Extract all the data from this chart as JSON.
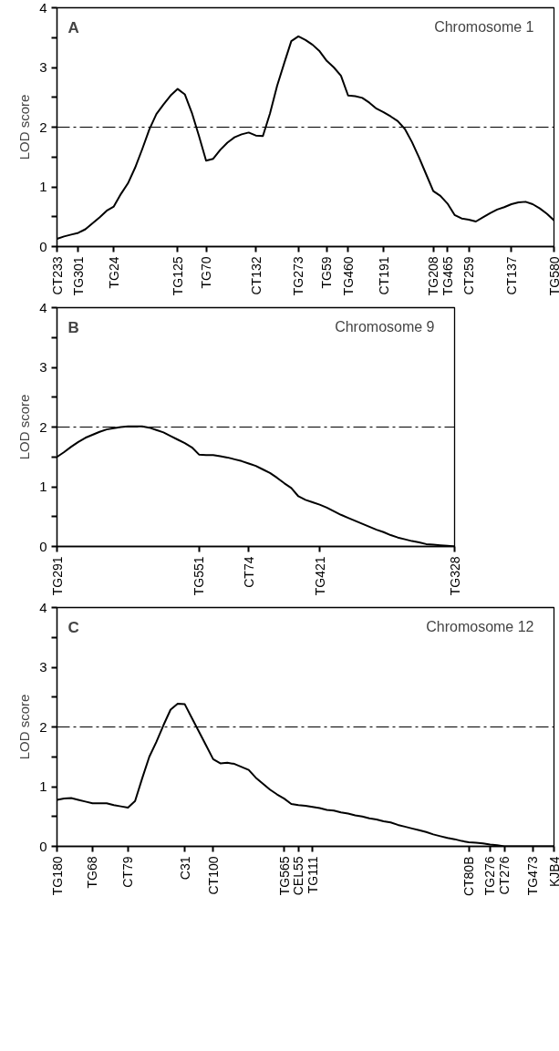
{
  "chart_data": [
    {
      "type": "line",
      "ylabel": "LOD score",
      "annotations": [
        "A",
        "Chromosome 1"
      ],
      "grid": false,
      "marker": "none",
      "line_style": "solid",
      "ylim": [
        0,
        4
      ],
      "categories": [
        "CT233",
        null,
        null,
        "TG301",
        null,
        null,
        null,
        null,
        "TG24",
        null,
        null,
        null,
        null,
        null,
        null,
        null,
        null,
        "TG125",
        null,
        null,
        null,
        "TG70",
        null,
        null,
        null,
        null,
        null,
        null,
        "CT132",
        null,
        null,
        null,
        null,
        null,
        "TG273",
        null,
        null,
        null,
        "TG59",
        null,
        null,
        "TG460",
        null,
        null,
        null,
        null,
        "CT191",
        null,
        null,
        null,
        null,
        null,
        null,
        "TG208",
        null,
        "TG465",
        null,
        null,
        "CT259",
        null,
        null,
        null,
        null,
        null,
        "CT137",
        null,
        null,
        null,
        null,
        null,
        "TG580"
      ],
      "yticks": [
        0,
        {
          "value": 0.5,
          "label": null
        },
        1,
        {
          "value": 1.5,
          "label": null
        },
        2,
        {
          "value": 2.5,
          "label": null
        },
        3,
        {
          "value": 3.5,
          "label": null
        },
        4
      ],
      "ref_lines": [
        {
          "axis": "y",
          "value": 2,
          "line_style": "dashed",
          "color": "#000000"
        }
      ],
      "series": [
        {
          "color": "#000000",
          "values": [
            0.13,
            0.17,
            0.2,
            0.23,
            0.29,
            0.39,
            0.49,
            0.6,
            0.67,
            0.88,
            1.06,
            1.32,
            1.63,
            1.96,
            2.22,
            2.38,
            2.53,
            2.64,
            2.55,
            2.24,
            1.85,
            1.44,
            1.47,
            1.62,
            1.74,
            1.83,
            1.88,
            1.91,
            1.86,
            1.85,
            2.23,
            2.69,
            3.07,
            3.44,
            3.52,
            3.46,
            3.38,
            3.27,
            3.11,
            3.0,
            2.86,
            2.53,
            2.52,
            2.49,
            2.41,
            2.31,
            2.25,
            2.18,
            2.1,
            1.97,
            1.75,
            1.49,
            1.21,
            0.93,
            0.85,
            0.72,
            0.53,
            0.47,
            0.45,
            0.42,
            0.49,
            0.56,
            0.62,
            0.66,
            0.71,
            0.74,
            0.75,
            0.71,
            0.64,
            0.55,
            0.44
          ]
        }
      ]
    },
    {
      "type": "line",
      "ylabel": "LOD score",
      "annotations": [
        "B",
        "Chromosome 9"
      ],
      "grid": false,
      "marker": "none",
      "line_style": "solid",
      "ylim": [
        0,
        4
      ],
      "categories": [
        "TG291",
        null,
        null,
        null,
        null,
        null,
        null,
        null,
        null,
        null,
        null,
        null,
        null,
        null,
        null,
        null,
        null,
        null,
        null,
        null,
        "TG551",
        null,
        null,
        null,
        null,
        null,
        null,
        "CT74",
        null,
        null,
        null,
        null,
        null,
        null,
        null,
        null,
        null,
        "TG421",
        null,
        null,
        null,
        null,
        null,
        null,
        null,
        null,
        null,
        null,
        null,
        null,
        null,
        null,
        null,
        null,
        null,
        null,
        "TG328"
      ],
      "yticks": [
        0,
        {
          "value": 0.5,
          "label": null
        },
        1,
        {
          "value": 1.5,
          "label": null
        },
        2,
        {
          "value": 2.5,
          "label": null
        },
        3,
        {
          "value": 3.5,
          "label": null
        },
        4
      ],
      "ref_lines": [
        {
          "axis": "y",
          "value": 2,
          "line_style": "dashed",
          "color": "#000000"
        }
      ],
      "series": [
        {
          "color": "#000000",
          "values": [
            1.5,
            1.58,
            1.67,
            1.75,
            1.82,
            1.87,
            1.92,
            1.96,
            1.98,
            2.0,
            2.01,
            2.01,
            2.01,
            1.99,
            1.95,
            1.91,
            1.85,
            1.79,
            1.73,
            1.66,
            1.54,
            1.53,
            1.53,
            1.51,
            1.49,
            1.46,
            1.43,
            1.39,
            1.35,
            1.29,
            1.23,
            1.15,
            1.06,
            0.98,
            0.84,
            0.78,
            0.74,
            0.7,
            0.65,
            0.59,
            0.53,
            0.48,
            0.43,
            0.38,
            0.33,
            0.28,
            0.24,
            0.19,
            0.15,
            0.12,
            0.09,
            0.07,
            0.04,
            0.03,
            0.02,
            0.01,
            0
          ]
        }
      ]
    },
    {
      "type": "line",
      "ylabel": "LOD score",
      "annotations": [
        "C",
        "Chromosome 12"
      ],
      "grid": false,
      "marker": "none",
      "line_style": "solid",
      "ylim": [
        0,
        4
      ],
      "categories": [
        "TG180",
        null,
        null,
        null,
        null,
        "TG68",
        null,
        null,
        null,
        null,
        "CT79",
        null,
        null,
        null,
        null,
        null,
        null,
        null,
        "C31",
        null,
        null,
        null,
        "CT100",
        null,
        null,
        null,
        null,
        null,
        null,
        null,
        null,
        null,
        "TG565",
        null,
        "CEL55",
        null,
        "TG111",
        null,
        null,
        null,
        null,
        null,
        null,
        null,
        null,
        null,
        null,
        null,
        null,
        null,
        null,
        null,
        null,
        null,
        null,
        null,
        null,
        null,
        "CT80B",
        null,
        null,
        "TG276",
        null,
        "CT276",
        null,
        null,
        null,
        "TG473",
        null,
        null,
        "KJB4"
      ],
      "yticks": [
        0,
        {
          "value": 0.5,
          "label": null
        },
        1,
        {
          "value": 1.5,
          "label": null
        },
        2,
        {
          "value": 2.5,
          "label": null
        },
        3,
        {
          "value": 3.5,
          "label": null
        },
        4
      ],
      "ref_lines": [
        {
          "axis": "y",
          "value": 2,
          "line_style": "dashed",
          "color": "#000000"
        }
      ],
      "series": [
        {
          "color": "#000000",
          "values": [
            0.78,
            0.8,
            0.81,
            0.78,
            0.75,
            0.72,
            0.72,
            0.72,
            0.69,
            0.67,
            0.65,
            0.76,
            1.14,
            1.5,
            1.75,
            2.03,
            2.29,
            2.39,
            2.38,
            2.15,
            1.92,
            1.69,
            1.46,
            1.39,
            1.4,
            1.38,
            1.33,
            1.28,
            1.15,
            1.05,
            0.95,
            0.87,
            0.8,
            0.71,
            0.69,
            0.68,
            0.66,
            0.64,
            0.61,
            0.6,
            0.57,
            0.55,
            0.52,
            0.5,
            0.47,
            0.45,
            0.42,
            0.4,
            0.36,
            0.33,
            0.3,
            0.27,
            0.24,
            0.2,
            0.17,
            0.14,
            0.12,
            0.09,
            0.07,
            0.06,
            0.05,
            0.03,
            0.02,
            0,
            0,
            0,
            0,
            0,
            0,
            0,
            0
          ]
        }
      ]
    }
  ]
}
